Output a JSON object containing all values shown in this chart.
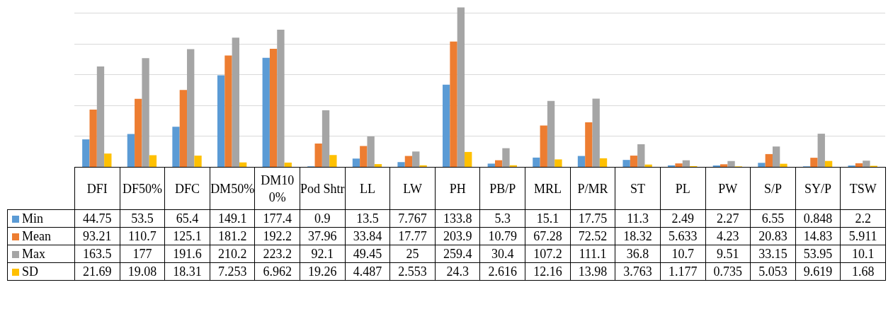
{
  "chart_data": {
    "type": "bar",
    "categories": [
      "DFI",
      "DF50%",
      "DFC",
      "DM50%",
      "DM100%",
      "Pod Shtr",
      "LL",
      "LW",
      "PH",
      "PB/P",
      "MRL",
      "P/MR",
      "ST",
      "PL",
      "PW",
      "S/P",
      "SY/P",
      "TSW"
    ],
    "series": [
      {
        "name": "Min",
        "color": "#5b9bd5",
        "values": [
          44.75,
          53.5,
          65.4,
          149.1,
          177.4,
          0.9,
          13.5,
          7.767,
          133.8,
          5.3,
          15.1,
          17.75,
          11.3,
          2.49,
          2.27,
          6.55,
          0.848,
          2.2
        ]
      },
      {
        "name": "Mean",
        "color": "#ed7d31",
        "values": [
          93.21,
          110.7,
          125.1,
          181.2,
          192.2,
          37.96,
          33.84,
          17.77,
          203.9,
          10.79,
          67.28,
          72.52,
          18.32,
          5.633,
          4.23,
          20.83,
          14.83,
          5.911
        ]
      },
      {
        "name": "Max",
        "color": "#a5a5a5",
        "values": [
          163.5,
          177,
          191.6,
          210.2,
          223.2,
          92.1,
          49.45,
          25,
          259.4,
          30.4,
          107.2,
          111.1,
          36.8,
          10.7,
          9.51,
          33.15,
          53.95,
          10.1
        ]
      },
      {
        "name": "SD",
        "color": "#ffc000",
        "values": [
          21.69,
          19.08,
          18.31,
          7.253,
          6.962,
          19.26,
          4.487,
          2.553,
          24.3,
          2.616,
          12.16,
          13.98,
          3.763,
          1.177,
          0.735,
          5.053,
          9.619,
          1.68
        ]
      }
    ],
    "ylim": [
      0,
      260
    ],
    "yticks": [
      {
        "value": 0,
        "label": null
      },
      {
        "value": 50,
        "label": null
      },
      {
        "value": 100,
        "label": null
      },
      {
        "value": 150,
        "label": null
      },
      {
        "value": 200,
        "label": null
      },
      {
        "value": 250,
        "label": null
      }
    ],
    "tick_labels": "x",
    "grid": "y",
    "legend": "bottom",
    "data_labels": true
  }
}
